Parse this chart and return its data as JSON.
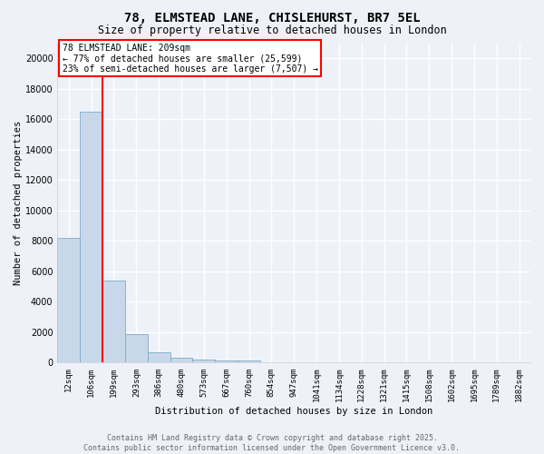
{
  "title": "78, ELMSTEAD LANE, CHISLEHURST, BR7 5EL",
  "subtitle": "Size of property relative to detached houses in London",
  "xlabel": "Distribution of detached houses by size in London",
  "ylabel": "Number of detached properties",
  "bar_color": "#c8d8ea",
  "bar_edge_color": "#7aabcc",
  "background_color": "#eef2f8",
  "grid_color": "#ffffff",
  "annotation_text": "78 ELMSTEAD LANE: 209sqm\n← 77% of detached houses are smaller (25,599)\n23% of semi-detached houses are larger (7,507) →",
  "footer_line1": "Contains HM Land Registry data © Crown copyright and database right 2025.",
  "footer_line2": "Contains public sector information licensed under the Open Government Licence v3.0.",
  "bins": [
    "12sqm",
    "106sqm",
    "199sqm",
    "293sqm",
    "386sqm",
    "480sqm",
    "573sqm",
    "667sqm",
    "760sqm",
    "854sqm",
    "947sqm",
    "1041sqm",
    "1134sqm",
    "1228sqm",
    "1321sqm",
    "1415sqm",
    "1508sqm",
    "1602sqm",
    "1695sqm",
    "1789sqm",
    "1882sqm"
  ],
  "heights": [
    8200,
    16500,
    5400,
    1850,
    700,
    300,
    230,
    150,
    150,
    0,
    0,
    0,
    0,
    0,
    0,
    0,
    0,
    0,
    0,
    0,
    0
  ],
  "red_line_x": 1.5,
  "ylim": [
    0,
    21000
  ],
  "yticks": [
    0,
    2000,
    4000,
    6000,
    8000,
    10000,
    12000,
    14000,
    16000,
    18000,
    20000
  ],
  "figsize": [
    6.0,
    5.0
  ],
  "dpi": 100
}
